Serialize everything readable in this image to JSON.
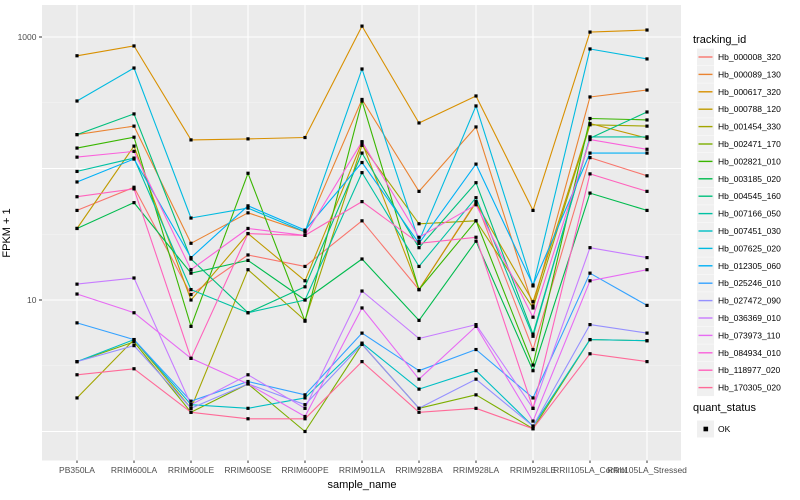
{
  "figure": {
    "y_axis": {
      "title": "FPKM + 1",
      "tick_labels": [
        "1000",
        "10"
      ],
      "tick_values": [
        1000,
        10
      ]
    },
    "x_axis": {
      "title": "sample_name"
    },
    "legend": {
      "title": "tracking_id"
    },
    "quant_legend": {
      "title": "quant_status",
      "entries": [
        {
          "label": "OK"
        }
      ]
    }
  },
  "colors": {
    "panel_bg": "#EBEBEB",
    "grid_major": "#FFFFFF",
    "grid_minor": "#F5F5F5",
    "axis_text": "#4D4D4D",
    "axis_tick": "#333333",
    "point": "#000000",
    "legend_key_bg": "#F0F0F0"
  },
  "chart_data": {
    "type": "line",
    "title": "",
    "xlabel": "sample_name",
    "ylabel": "FPKM + 1",
    "y_scale": "log10",
    "ylim": [
      0.8,
      1300
    ],
    "y_breaks_labeled": [
      10,
      1000
    ],
    "y_gridlines_major": [
      1,
      10,
      100,
      1000
    ],
    "y_gridlines_minor": [
      3.162,
      31.62,
      316.2
    ],
    "grid": true,
    "legend_position": "right",
    "point_shape": "small black square (quant_status = OK)",
    "quant_status": "OK",
    "categories": [
      "PB350LA",
      "RRIM600LA",
      "RRIM600LE",
      "RRIM600SE",
      "RRIM600PE",
      "RRIM901LA",
      "RRIM928BA",
      "RRIM928LA",
      "RRIM928LE",
      "RRII105LA_Control",
      "RRII105LA_Stressed"
    ],
    "series": [
      {
        "name": "Hb_000008_320",
        "color": "#F8766D",
        "values": [
          48,
          72,
          11,
          22,
          18,
          40,
          12,
          56,
          4.2,
          121,
          88
        ]
      },
      {
        "name": "Hb_000089_130",
        "color": "#EA8331",
        "values": [
          181,
          210,
          27,
          46,
          33,
          335,
          67,
          207,
          9,
          350,
          395
        ]
      },
      {
        "name": "Hb_000617_320",
        "color": "#D89000",
        "values": [
          720,
          855,
          165,
          168,
          172,
          1210,
          222,
          356,
          48,
          1090,
          1130
        ]
      },
      {
        "name": "Hb_000788_120",
        "color": "#C09B00",
        "values": [
          35,
          148,
          10,
          32,
          14,
          158,
          12,
          55,
          9.7,
          220,
          170
        ]
      },
      {
        "name": "Hb_001454_330",
        "color": "#A3A500",
        "values": [
          1.8,
          5,
          1.5,
          17,
          7,
          150,
          38,
          40,
          8.7,
          215,
          210
        ]
      },
      {
        "name": "Hb_002471_170",
        "color": "#7CAE00",
        "values": [
          3.4,
          4.8,
          1.4,
          2.3,
          1.0,
          4.6,
          1.5,
          1.9,
          1.05,
          5,
          4.9
        ]
      },
      {
        "name": "Hb_002821_010",
        "color": "#39B600",
        "values": [
          143,
          173,
          6.3,
          92,
          6.9,
          326,
          12,
          40,
          3.2,
          240,
          234
        ]
      },
      {
        "name": "Hb_003185_020",
        "color": "#00BB4E",
        "values": [
          35,
          55,
          16,
          20,
          10,
          20.5,
          7,
          28,
          2.9,
          65,
          48
        ]
      },
      {
        "name": "Hb_004545_160",
        "color": "#00BF7D",
        "values": [
          181,
          260,
          20.5,
          8,
          12.6,
          131,
          25,
          78,
          5.5,
          170,
          269
        ]
      },
      {
        "name": "Hb_007166_050",
        "color": "#00C1A3",
        "values": [
          95,
          120,
          12,
          8,
          10,
          93,
          18,
          60,
          5.3,
          174,
          174
        ]
      },
      {
        "name": "Hb_007451_030",
        "color": "#00BFC4",
        "values": [
          3.4,
          5,
          1.6,
          1.5,
          1.8,
          4.7,
          2.1,
          2.9,
          1.1,
          5,
          4.9
        ]
      },
      {
        "name": "Hb_007625_020",
        "color": "#00BAE0",
        "values": [
          326,
          581,
          42,
          50,
          33,
          571,
          28,
          299,
          12.8,
          811,
          681
        ]
      },
      {
        "name": "Hb_012305_060",
        "color": "#00B0F6",
        "values": [
          79,
          118,
          21,
          52,
          34,
          111,
          27,
          108,
          13,
          131,
          131
        ]
      },
      {
        "name": "Hb_025246_010",
        "color": "#35A2FF",
        "values": [
          6.7,
          5,
          1.7,
          2.4,
          1.9,
          5.6,
          2.9,
          4.2,
          1.8,
          16,
          9.1
        ]
      },
      {
        "name": "Hb_027472_090",
        "color": "#9590FF",
        "values": [
          3.4,
          4.5,
          1.5,
          2.3,
          1.6,
          4.6,
          1.5,
          2.5,
          1.1,
          6.5,
          5.6
        ]
      },
      {
        "name": "Hb_036369_010",
        "color": "#C77CFF",
        "values": [
          13.2,
          14.7,
          1.6,
          2.7,
          1.5,
          11.7,
          5.1,
          6.5,
          1.5,
          25,
          21
        ]
      },
      {
        "name": "Hb_073973_110",
        "color": "#E76BF3",
        "values": [
          11.1,
          8,
          3.6,
          2.3,
          1.3,
          8.7,
          2.5,
          6.3,
          1.2,
          14,
          17
        ]
      },
      {
        "name": "Hb_084934_010",
        "color": "#FA62DB",
        "values": [
          122,
          135,
          17,
          35,
          31,
          160,
          30,
          53,
          7.4,
          166,
          140
        ]
      },
      {
        "name": "Hb_118977_020",
        "color": "#FF62BC",
        "values": [
          61,
          70,
          3.6,
          32,
          31,
          56,
          27,
          30,
          1.5,
          91,
          67
        ]
      },
      {
        "name": "Hb_170305_020",
        "color": "#FF6A98",
        "values": [
          2.7,
          3.0,
          1.4,
          1.25,
          1.25,
          3.4,
          1.4,
          1.5,
          1.05,
          3.9,
          3.4
        ]
      }
    ]
  }
}
